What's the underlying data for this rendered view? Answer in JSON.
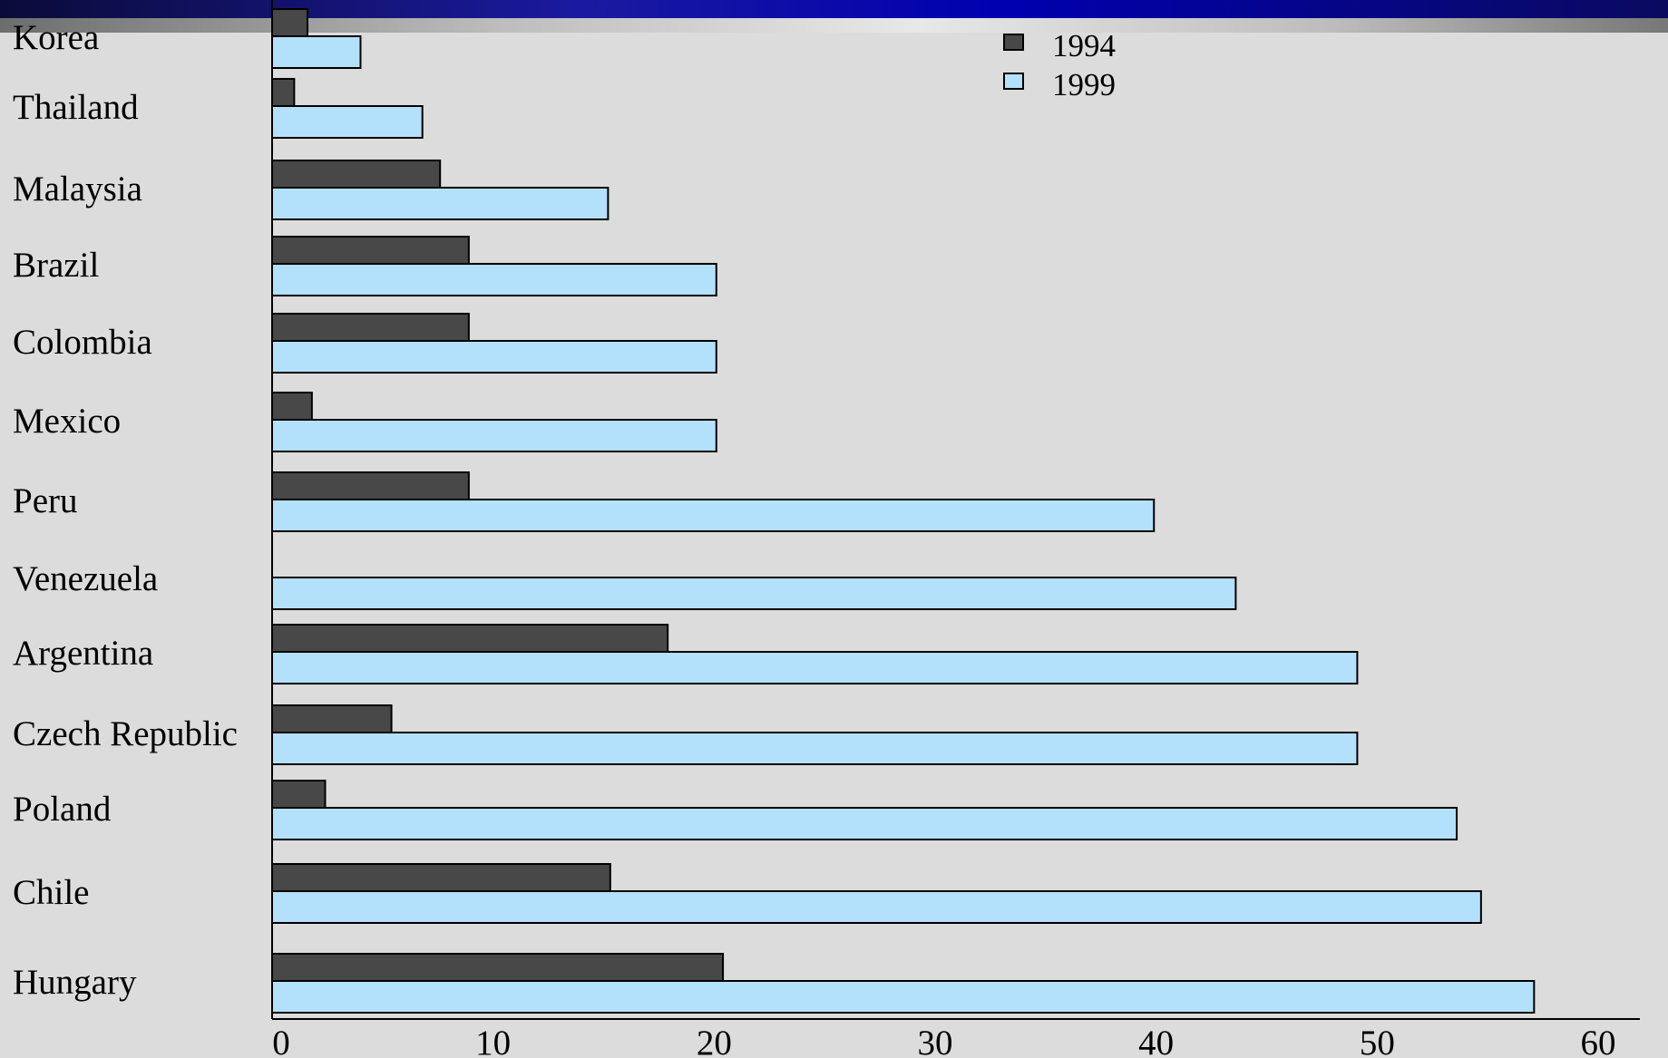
{
  "chart_data": {
    "type": "bar",
    "orientation": "horizontal",
    "categories": [
      "Korea",
      "Thailand",
      "Malaysia",
      "Brazil",
      "Colombia",
      "Mexico",
      "Peru",
      "Venezuela",
      "Argentina",
      "Czech Republic",
      "Poland",
      "Chile",
      "Hungary"
    ],
    "series": [
      {
        "name": "1994",
        "color": "#484848",
        "values": [
          1.6,
          1.0,
          7.6,
          8.9,
          8.9,
          1.8,
          8.9,
          0,
          17.9,
          5.4,
          2.4,
          15.3,
          20.4
        ]
      },
      {
        "name": "1999",
        "color": "#b3e1fb",
        "values": [
          4.0,
          6.8,
          15.2,
          20.1,
          20.1,
          20.1,
          39.9,
          43.6,
          49.1,
          49.1,
          53.6,
          54.7,
          57.1
        ]
      }
    ],
    "xlim": [
      0,
      60
    ],
    "xticks": [
      "0",
      "10",
      "20",
      "30",
      "40",
      "50",
      "60"
    ],
    "grid": false,
    "legend": "top-center"
  }
}
